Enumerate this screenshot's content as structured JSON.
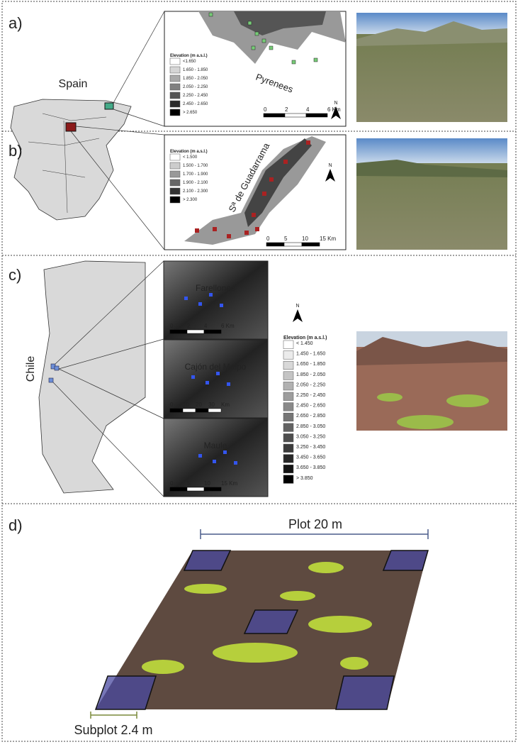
{
  "panels": {
    "a": {
      "label": "a)",
      "country": "Spain",
      "legend_title": "Elevation (m a.s.l.)",
      "legend": [
        "<1.650",
        "1.650 - 1.850",
        "1.850 - 2.050",
        "2.050 - 2.250",
        "2.250 - 2.450",
        "2.450 - 2.650",
        "> 2.650"
      ],
      "region": "Pyrenees",
      "scale": [
        "0",
        "2",
        "4",
        "6 Km"
      ],
      "north": "N"
    },
    "b": {
      "label": "b)",
      "legend_title": "Elevation (m a.s.l.)",
      "legend": [
        "< 1.500",
        "1.500 - 1.700",
        "1.700 - 1.900",
        "1.900 - 2.100",
        "2.100 - 2.300",
        "> 2.300"
      ],
      "region": "Sª de Guadarrama",
      "scale": [
        "0",
        "5",
        "10",
        "15 Km"
      ],
      "north": "N"
    },
    "c": {
      "label": "c)",
      "country": "Chile",
      "north": "N",
      "legend_title": "Elevation (m a.s.l.)",
      "legend": [
        "< 1.450",
        "1.450 - 1.650",
        "1.650 - 1.850",
        "1.850 - 2.050",
        "2.050 - 2.250",
        "2.250 - 2.450",
        "2.450 - 2.650",
        "2.650 - 2.850",
        "2.850 - 3.050",
        "3.050 - 3.250",
        "3.250 - 3.450",
        "3.450 - 3.650",
        "3.650 - 3.850",
        "> 3.850"
      ],
      "sites": [
        {
          "name": "Farellones",
          "scale": [
            "0",
            "2",
            "4",
            "6 Km"
          ]
        },
        {
          "name": "Cajón del Maipo",
          "scale": [
            "0",
            "10",
            "20",
            "30",
            "Km"
          ]
        },
        {
          "name": "Maule",
          "scale": [
            "0",
            "5",
            "10",
            "15 Km"
          ]
        }
      ]
    },
    "d": {
      "label": "d)",
      "plot": "Plot 20 m",
      "subplot": "Subplot 2.4 m"
    }
  }
}
